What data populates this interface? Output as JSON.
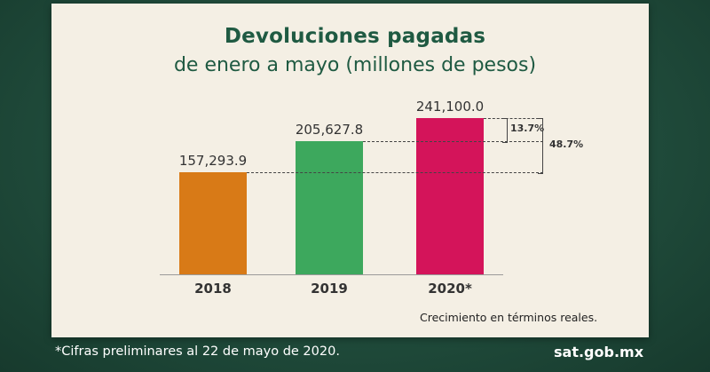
{
  "chart_data": {
    "type": "bar",
    "title": "Devoluciones pagadas",
    "subtitle": "de enero a mayo (millones de pesos)",
    "categories": [
      "2018",
      "2019",
      "2020*"
    ],
    "values": [
      157293.9,
      205627.8,
      241100.0
    ],
    "value_labels": [
      "157,293.9",
      "205,627.8",
      "241,100.0"
    ],
    "colors": [
      "#d87a17",
      "#3da85d",
      "#d4145a"
    ],
    "ylim": [
      0,
      241100.0
    ],
    "annotations": [
      {
        "from": "2019",
        "to": "2020*",
        "label": "13.7%"
      },
      {
        "from": "2018",
        "to": "2020*",
        "label": "48.7%"
      }
    ],
    "note": "Crecimiento en términos reales."
  },
  "footer": {
    "disclaimer": "*Cifras preliminares al 22 de mayo de 2020.",
    "site": "sat.gob.mx"
  },
  "colors": {
    "background": "#1f4a3a",
    "card": "#f4efe4",
    "title": "#1f5a42"
  }
}
